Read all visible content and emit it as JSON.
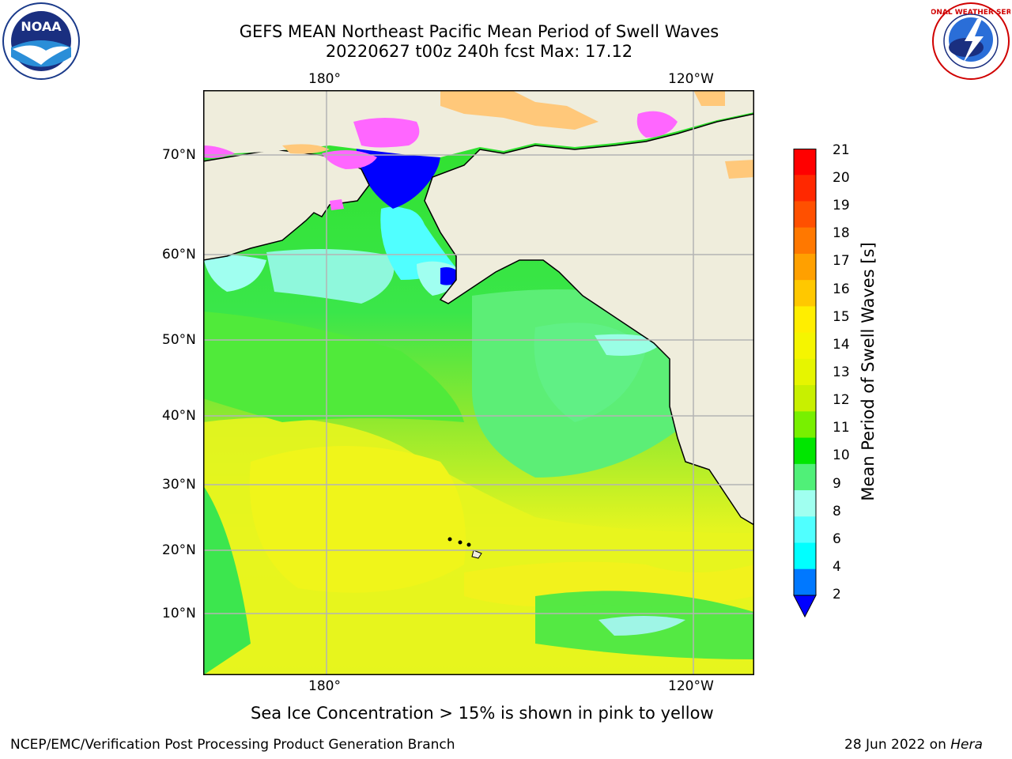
{
  "title": {
    "line1": "GEFS MEAN Northeast Pacific Mean Period of Swell Waves",
    "line2": "20220627 t00z 240h fcst   Max: 17.12"
  },
  "map": {
    "lon_labels_top": [
      "180°",
      "120°W"
    ],
    "lon_labels_bottom": [
      "180°",
      "120°W"
    ],
    "lat_labels": [
      "70°N",
      "60°N",
      "50°N",
      "40°N",
      "30°N",
      "20°N",
      "10°N"
    ]
  },
  "colorbar": {
    "label": "Mean Period of Swell Waves [s]",
    "ticks": [
      "21",
      "20",
      "19",
      "18",
      "17",
      "16",
      "15",
      "14",
      "13",
      "12",
      "11",
      "10",
      "9",
      "8",
      "6",
      "4",
      "2"
    ],
    "colors": [
      "#ff0000",
      "#ff2800",
      "#ff5000",
      "#ff7800",
      "#ffa000",
      "#ffc800",
      "#ffee00",
      "#f5f500",
      "#e6f500",
      "#c8f000",
      "#78f000",
      "#00e600",
      "#50f078",
      "#a0fff0",
      "#50ffff",
      "#00ffff",
      "#00c8ff",
      "#0078ff",
      "#0000ff"
    ]
  },
  "notes": {
    "sea_ice": "Sea Ice Concentration > 15% is shown in pink to yellow"
  },
  "footer": {
    "left": "NCEP/EMC/Verification Post Processing Product Generation Branch",
    "right_date": "28 Jun 2022 on ",
    "right_host": "Hera"
  },
  "logos": {
    "noaa": {
      "icon": "noaa-logo",
      "text": "NOAA"
    },
    "nws": {
      "icon": "nws-logo",
      "text": "NATIONAL WEATHER SERVICE"
    }
  },
  "palette": {
    "land": "#efeddc",
    "grid": "#b4b4b4",
    "sea_ice_pink": "#ff66ff",
    "sea_ice_orange": "#ffc87a"
  }
}
